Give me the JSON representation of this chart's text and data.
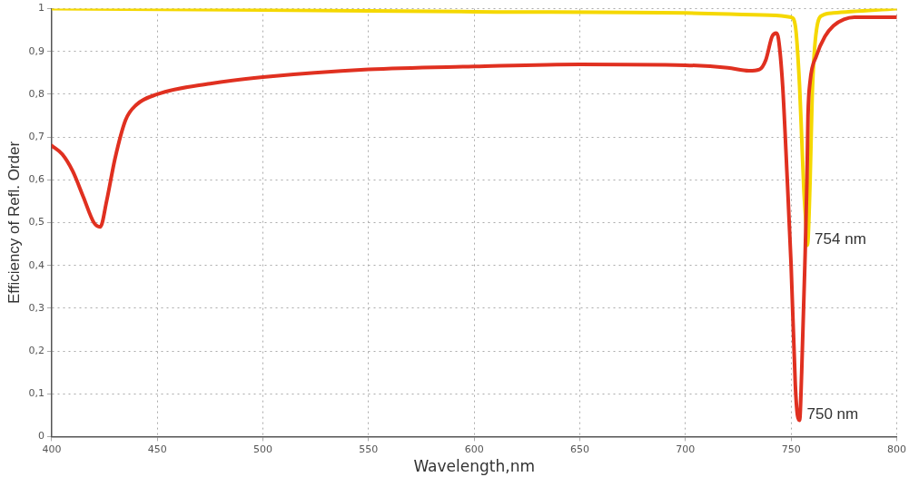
{
  "chart_data": {
    "type": "line",
    "xlabel": "Wavelength,nm",
    "ylabel": "Efficiency of Refl. Order",
    "series": [
      {
        "color": "#e03020",
        "x": [
          400,
          405,
          410,
          415,
          420,
          423,
          426,
          430,
          435,
          440,
          450,
          475,
          500,
          550,
          600,
          650,
          700,
          720,
          730,
          735,
          738,
          741,
          743,
          744,
          746,
          748,
          750,
          752,
          753,
          754,
          755,
          756.5,
          757.5,
          758,
          759,
          762,
          766,
          770,
          775,
          780,
          800
        ],
        "values": [
          0.68,
          0.66,
          0.62,
          0.56,
          0.5,
          0.49,
          0.55,
          0.65,
          0.74,
          0.775,
          0.8,
          0.825,
          0.84,
          0.858,
          0.865,
          0.87,
          0.868,
          0.862,
          0.855,
          0.858,
          0.88,
          0.935,
          0.943,
          0.93,
          0.82,
          0.62,
          0.4,
          0.12,
          0.05,
          0.038,
          0.15,
          0.4,
          0.6,
          0.75,
          0.83,
          0.89,
          0.935,
          0.96,
          0.975,
          0.98,
          0.98
        ]
      },
      {
        "color": "#f5d800",
        "x": [
          400,
          500,
          600,
          700,
          740,
          750,
          752,
          754,
          755,
          756,
          757,
          757.7,
          759,
          760,
          762,
          765,
          770,
          800
        ],
        "values": [
          1.0,
          0.997,
          0.993,
          0.99,
          0.985,
          0.98,
          0.96,
          0.82,
          0.7,
          0.58,
          0.5,
          0.447,
          0.6,
          0.8,
          0.95,
          0.985,
          0.99,
          1.0
        ]
      }
    ],
    "xlim": [
      400,
      800
    ],
    "xticks": [
      400,
      450,
      500,
      550,
      600,
      650,
      700,
      750,
      800
    ],
    "ylim": [
      0,
      1
    ],
    "yticks": [
      0,
      {
        "value": 0.1,
        "label": "0,1"
      },
      {
        "value": 0.2,
        "label": "0,2"
      },
      {
        "value": 0.3,
        "label": "0,3"
      },
      {
        "value": 0.4,
        "label": "0,4"
      },
      {
        "value": 0.5,
        "label": "0,5"
      },
      {
        "value": 0.6,
        "label": "0,6"
      },
      {
        "value": 0.7,
        "label": "0,7"
      },
      {
        "value": 0.8,
        "label": "0,8"
      },
      {
        "value": 0.9,
        "label": "0,9"
      },
      1
    ],
    "grid": true,
    "legend": false,
    "marker": "none",
    "line_style": "solid",
    "annotations": [
      {
        "text": "750 nm",
        "x": 754,
        "y": 0.038
      },
      {
        "text": "754 nm",
        "x": 757.7,
        "y": 0.447
      }
    ]
  }
}
